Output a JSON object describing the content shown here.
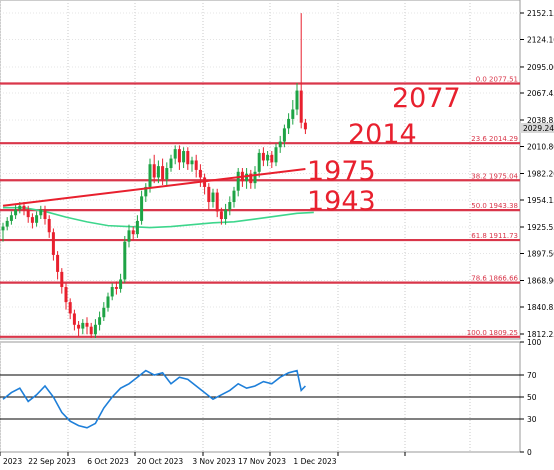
{
  "chart_data": {
    "type": "candlestick",
    "y_ticks": [
      "2152.15",
      "2124.10",
      "2095.00",
      "2067.45",
      "2038.85",
      "2010.80",
      "1982.20",
      "1954.15",
      "1925.55",
      "1897.50",
      "1868.90",
      "1840.85",
      "1812.25"
    ],
    "y_tick_values": [
      2152.15,
      2124.1,
      2095.0,
      2067.45,
      2038.85,
      2010.8,
      1982.2,
      1954.15,
      1925.55,
      1897.5,
      1868.9,
      1840.85,
      1812.25
    ],
    "ylim": [
      1806,
      2158
    ],
    "x_ticks": [
      "2023",
      "22 Sep 2023",
      "6 Oct 2023",
      "20 Oct 2023",
      "3 Nov 2023",
      "17 Nov 2023",
      "1 Dec 2023"
    ],
    "current_price": "2029.24",
    "current_price_value": 2029.24,
    "fib_levels": [
      {
        "label": "0.0 2077.51",
        "value": 2077.51
      },
      {
        "label": "23.6 2014.29",
        "value": 2014.29
      },
      {
        "label": "38.2 1975.04",
        "value": 1975.04
      },
      {
        "label": "50.0 1943.38",
        "value": 1943.38
      },
      {
        "label": "61.8 1911.73",
        "value": 1911.73
      },
      {
        "label": "78.6 1866.66",
        "value": 1866.66
      },
      {
        "label": "100.0 1809.25",
        "value": 1809.25
      }
    ],
    "annotations": [
      {
        "text": "2077",
        "value": 2077
      },
      {
        "text": "2014",
        "value": 2014
      },
      {
        "text": "1975",
        "value": 1975
      },
      {
        "text": "1943",
        "value": 1943
      }
    ],
    "trendline": {
      "from": {
        "candle": 0,
        "value": 1948
      },
      "to": {
        "candle": 72,
        "value": 1987
      }
    },
    "candles": [
      [
        1922,
        1926,
        1910,
        1930
      ],
      [
        1926,
        1932,
        1922,
        1936
      ],
      [
        1932,
        1938,
        1928,
        1942
      ],
      [
        1938,
        1944,
        1934,
        1950
      ],
      [
        1944,
        1948,
        1940,
        1952
      ],
      [
        1948,
        1944,
        1938,
        1952
      ],
      [
        1944,
        1936,
        1930,
        1948
      ],
      [
        1936,
        1930,
        1924,
        1940
      ],
      [
        1930,
        1938,
        1926,
        1942
      ],
      [
        1938,
        1944,
        1934,
        1948
      ],
      [
        1944,
        1934,
        1928,
        1948
      ],
      [
        1934,
        1920,
        1914,
        1938
      ],
      [
        1920,
        1896,
        1890,
        1924
      ],
      [
        1896,
        1878,
        1870,
        1900
      ],
      [
        1878,
        1862,
        1855,
        1882
      ],
      [
        1862,
        1846,
        1838,
        1866
      ],
      [
        1846,
        1834,
        1828,
        1850
      ],
      [
        1834,
        1822,
        1816,
        1838
      ],
      [
        1822,
        1818,
        1810,
        1826
      ],
      [
        1818,
        1824,
        1812,
        1828
      ],
      [
        1824,
        1820,
        1812,
        1830
      ],
      [
        1820,
        1812,
        1808,
        1824
      ],
      [
        1812,
        1822,
        1808,
        1828
      ],
      [
        1822,
        1830,
        1816,
        1836
      ],
      [
        1830,
        1840,
        1826,
        1846
      ],
      [
        1840,
        1852,
        1836,
        1856
      ],
      [
        1852,
        1862,
        1848,
        1866
      ],
      [
        1862,
        1860,
        1854,
        1868
      ],
      [
        1860,
        1870,
        1856,
        1876
      ],
      [
        1870,
        1910,
        1866,
        1916
      ],
      [
        1910,
        1922,
        1904,
        1928
      ],
      [
        1922,
        1918,
        1912,
        1926
      ],
      [
        1918,
        1932,
        1914,
        1938
      ],
      [
        1932,
        1958,
        1928,
        1964
      ],
      [
        1958,
        1968,
        1952,
        1972
      ],
      [
        1968,
        1992,
        1962,
        1998
      ],
      [
        1992,
        1978,
        1972,
        2002
      ],
      [
        1978,
        1990,
        1972,
        1996
      ],
      [
        1990,
        1976,
        1970,
        1998
      ],
      [
        1976,
        1988,
        1970,
        1994
      ],
      [
        1988,
        1998,
        1984,
        2002
      ],
      [
        1998,
        2008,
        1992,
        2012
      ],
      [
        2008,
        1994,
        1986,
        2012
      ],
      [
        1994,
        2006,
        1988,
        2010
      ],
      [
        2006,
        1992,
        1986,
        2010
      ],
      [
        1992,
        1996,
        1984,
        2000
      ],
      [
        1996,
        1986,
        1978,
        2002
      ],
      [
        1986,
        1978,
        1968,
        1992
      ],
      [
        1978,
        1968,
        1960,
        1982
      ],
      [
        1968,
        1952,
        1944,
        1972
      ],
      [
        1952,
        1962,
        1946,
        1966
      ],
      [
        1962,
        1942,
        1936,
        1966
      ],
      [
        1942,
        1934,
        1928,
        1946
      ],
      [
        1934,
        1944,
        1928,
        1950
      ],
      [
        1944,
        1952,
        1938,
        1958
      ],
      [
        1952,
        1964,
        1946,
        1968
      ],
      [
        1964,
        1984,
        1958,
        1988
      ],
      [
        1984,
        1974,
        1968,
        1988
      ],
      [
        1974,
        1982,
        1966,
        1988
      ],
      [
        1982,
        1972,
        1966,
        1986
      ],
      [
        1972,
        1984,
        1966,
        1990
      ],
      [
        1984,
        2004,
        1978,
        2008
      ],
      [
        2004,
        1996,
        1990,
        2010
      ],
      [
        1996,
        2002,
        1990,
        2006
      ],
      [
        2002,
        1994,
        1988,
        2006
      ],
      [
        1994,
        2010,
        1990,
        2014
      ],
      [
        2010,
        2016,
        2004,
        2022
      ],
      [
        2016,
        2030,
        2010,
        2034
      ],
      [
        2030,
        2040,
        2024,
        2046
      ],
      [
        2040,
        2050,
        2034,
        2060
      ],
      [
        2050,
        2070,
        2044,
        2078
      ],
      [
        2070,
        2036,
        2030,
        2152
      ],
      [
        2036,
        2029,
        2024,
        2040
      ]
    ],
    "ma": [
      [
        0,
        1946
      ],
      [
        5,
        1946
      ],
      [
        10,
        1942
      ],
      [
        15,
        1936
      ],
      [
        20,
        1931
      ],
      [
        25,
        1927
      ],
      [
        30,
        1926
      ],
      [
        35,
        1925
      ],
      [
        40,
        1926
      ],
      [
        45,
        1928
      ],
      [
        50,
        1930
      ],
      [
        55,
        1931
      ],
      [
        60,
        1934
      ],
      [
        65,
        1937
      ],
      [
        70,
        1940
      ],
      [
        74,
        1941
      ]
    ],
    "rsi_levels": [
      70,
      50,
      30
    ],
    "rsi_ticks": [
      "100",
      "70",
      "50",
      "30",
      "0"
    ],
    "rsi": [
      [
        0,
        48
      ],
      [
        2,
        54
      ],
      [
        4,
        58
      ],
      [
        6,
        46
      ],
      [
        8,
        52
      ],
      [
        10,
        60
      ],
      [
        12,
        50
      ],
      [
        14,
        36
      ],
      [
        16,
        28
      ],
      [
        18,
        24
      ],
      [
        20,
        22
      ],
      [
        22,
        26
      ],
      [
        24,
        40
      ],
      [
        26,
        50
      ],
      [
        28,
        58
      ],
      [
        30,
        62
      ],
      [
        32,
        68
      ],
      [
        34,
        74
      ],
      [
        36,
        70
      ],
      [
        38,
        72
      ],
      [
        40,
        62
      ],
      [
        42,
        68
      ],
      [
        44,
        66
      ],
      [
        46,
        60
      ],
      [
        48,
        54
      ],
      [
        50,
        48
      ],
      [
        52,
        52
      ],
      [
        54,
        56
      ],
      [
        56,
        62
      ],
      [
        58,
        58
      ],
      [
        60,
        60
      ],
      [
        62,
        64
      ],
      [
        64,
        62
      ],
      [
        66,
        68
      ],
      [
        68,
        72
      ],
      [
        70,
        74
      ],
      [
        71,
        56
      ],
      [
        72,
        60
      ]
    ],
    "colors": {
      "up": "#1ea345",
      "down": "#e8202e",
      "fib": "#d9364a",
      "ma": "#3dd68c",
      "rsi": "#1e7fd9",
      "trend": "#e8202e"
    }
  }
}
